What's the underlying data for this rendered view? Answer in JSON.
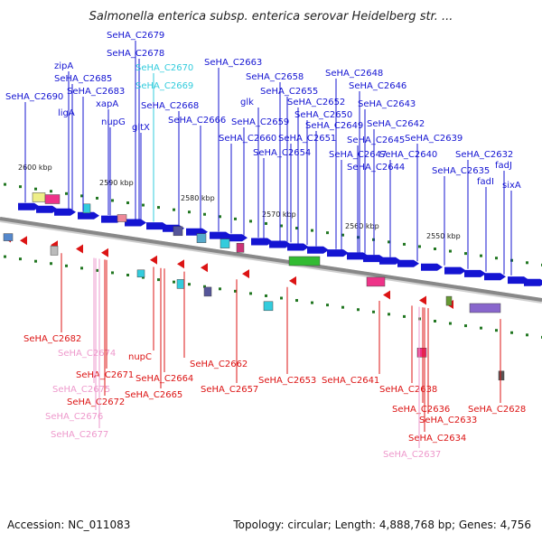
{
  "title": "Salmonella enterica subsp. enterica serovar Heidelberg str. ...",
  "footer": {
    "accession_label": "Accession: NC_011083",
    "summary_label": "Topology: circular; Length: 4,888,768 bp; Genes: 4,756"
  },
  "colors": {
    "forward": "#1414d2",
    "reverse": "#dc1414",
    "pseudo_forward": "#33ccdd",
    "pseudo_reverse": "#ee99cc",
    "backbone": "#888888",
    "tick": "#227722"
  },
  "scale_labels": [
    "2600 kbp",
    "2590 kbp",
    "2580 kbp",
    "2570 kbp",
    "2560 kbp",
    "2550 kbp"
  ],
  "forward_labels": [
    {
      "text": "SeHA_C2679",
      "style": "fwd"
    },
    {
      "text": "SeHA_C2678",
      "style": "fwd"
    },
    {
      "text": "SeHA_C2670",
      "style": "pseudo"
    },
    {
      "text": "SeHA_C2663",
      "style": "fwd"
    },
    {
      "text": "zipA",
      "style": "fwd"
    },
    {
      "text": "SeHA_C2685",
      "style": "fwd"
    },
    {
      "text": "SeHA_C2669",
      "style": "pseudo"
    },
    {
      "text": "SeHA_C2683",
      "style": "fwd"
    },
    {
      "text": "SeHA_C2690",
      "style": "fwd"
    },
    {
      "text": "xapA",
      "style": "fwd"
    },
    {
      "text": "ligA",
      "style": "fwd"
    },
    {
      "text": "nupG",
      "style": "fwd"
    },
    {
      "text": "gltX",
      "style": "fwd"
    },
    {
      "text": "SeHA_C2668",
      "style": "fwd"
    },
    {
      "text": "SeHA_C2666",
      "style": "fwd"
    },
    {
      "text": "SeHA_C2658",
      "style": "fwd"
    },
    {
      "text": "SeHA_C2655",
      "style": "fwd"
    },
    {
      "text": "glk",
      "style": "fwd"
    },
    {
      "text": "SeHA_C2652",
      "style": "fwd"
    },
    {
      "text": "SeHA_C2650",
      "style": "fwd"
    },
    {
      "text": "SeHA_C2659",
      "style": "fwd"
    },
    {
      "text": "SeHA_C2649",
      "style": "fwd"
    },
    {
      "text": "SeHA_C2660",
      "style": "fwd"
    },
    {
      "text": "SeHA_C2651",
      "style": "fwd"
    },
    {
      "text": "SeHA_C2654",
      "style": "fwd"
    },
    {
      "text": "SeHA_C2648",
      "style": "fwd"
    },
    {
      "text": "SeHA_C2646",
      "style": "fwd"
    },
    {
      "text": "SeHA_C2643",
      "style": "fwd"
    },
    {
      "text": "SeHA_C2642",
      "style": "fwd"
    },
    {
      "text": "SeHA_C2645",
      "style": "fwd"
    },
    {
      "text": "SeHA_C2647",
      "style": "fwd"
    },
    {
      "text": "SeHA_C2644",
      "style": "fwd"
    },
    {
      "text": "SeHA_C2639",
      "style": "fwd"
    },
    {
      "text": "SeHA_C2640",
      "style": "fwd"
    },
    {
      "text": "SeHA_C2632",
      "style": "fwd"
    },
    {
      "text": "SeHA_C2635",
      "style": "fwd"
    },
    {
      "text": "fadJ",
      "style": "fwd"
    },
    {
      "text": "fadI",
      "style": "fwd"
    },
    {
      "text": "sixA",
      "style": "fwd"
    }
  ],
  "reverse_labels": [
    {
      "text": "SeHA_C2682",
      "style": "rev"
    },
    {
      "text": "SeHA_C2674",
      "style": "pseudo"
    },
    {
      "text": "nupC",
      "style": "rev"
    },
    {
      "text": "SeHA_C2671",
      "style": "rev"
    },
    {
      "text": "SeHA_C2675",
      "style": "pseudo"
    },
    {
      "text": "SeHA_C2672",
      "style": "rev"
    },
    {
      "text": "SeHA_C2676",
      "style": "pseudo"
    },
    {
      "text": "SeHA_C2677",
      "style": "pseudo"
    },
    {
      "text": "SeHA_C2664",
      "style": "rev"
    },
    {
      "text": "SeHA_C2665",
      "style": "rev"
    },
    {
      "text": "SeHA_C2662",
      "style": "rev"
    },
    {
      "text": "SeHA_C2657",
      "style": "rev"
    },
    {
      "text": "SeHA_C2653",
      "style": "rev"
    },
    {
      "text": "SeHA_C2641",
      "style": "rev"
    },
    {
      "text": "SeHA_C2638",
      "style": "rev"
    },
    {
      "text": "SeHA_C2636",
      "style": "rev"
    },
    {
      "text": "SeHA_C2633",
      "style": "rev"
    },
    {
      "text": "SeHA_C2634",
      "style": "rev"
    },
    {
      "text": "SeHA_C2637",
      "style": "pseudo"
    },
    {
      "text": "SeHA_C2628",
      "style": "rev"
    }
  ]
}
